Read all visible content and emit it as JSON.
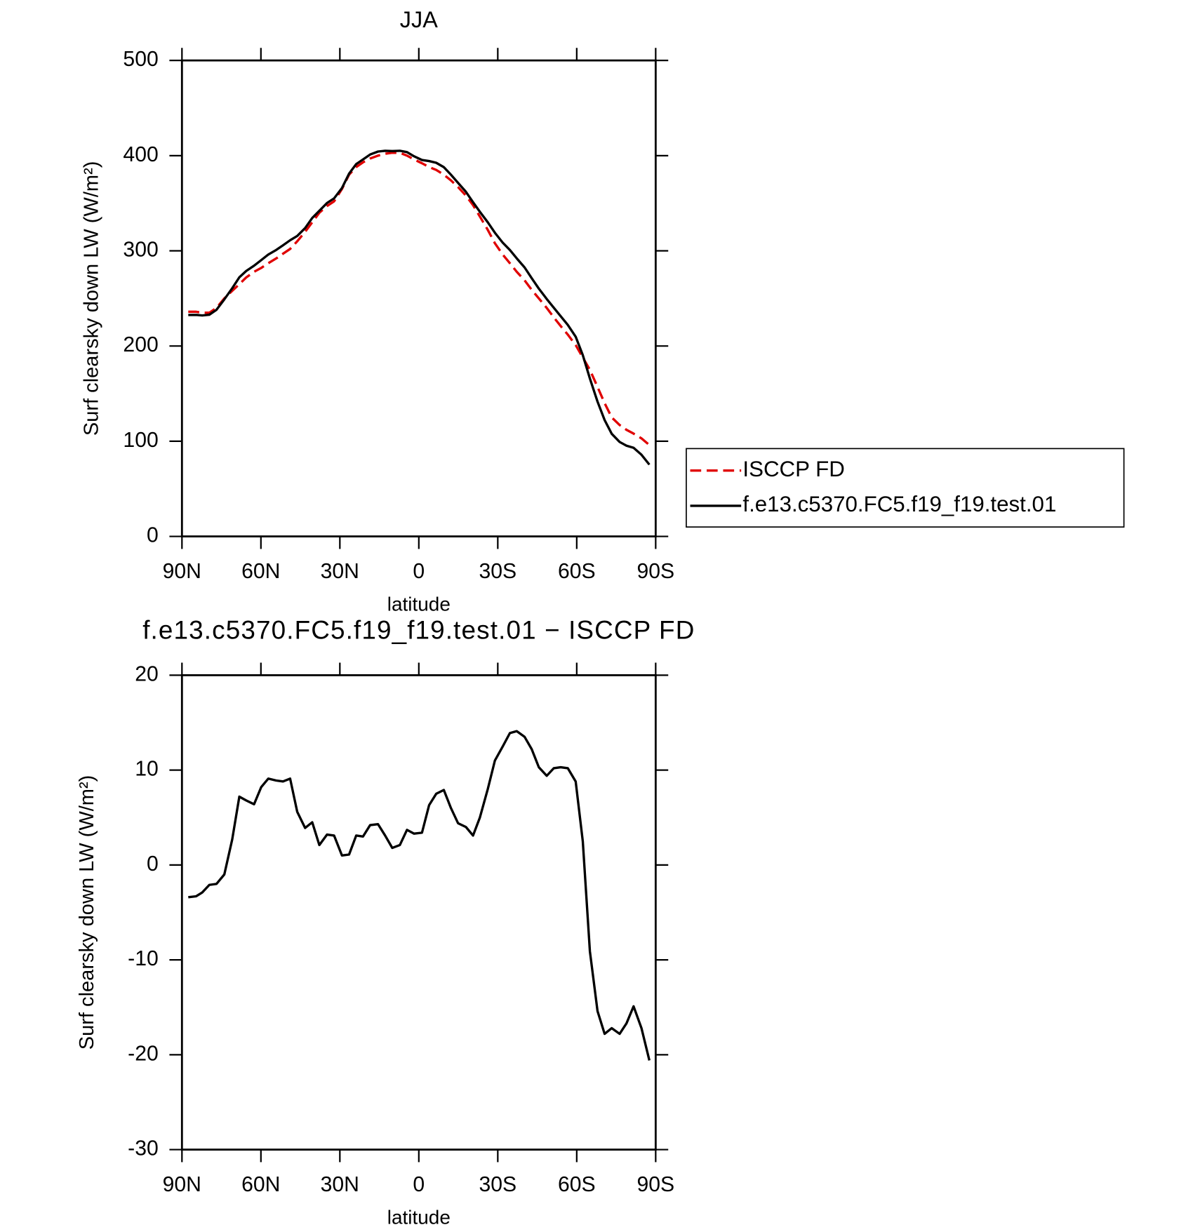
{
  "chart_data": [
    {
      "type": "line",
      "title": "JJA",
      "xlabel": "latitude",
      "ylabel": "Surf clearsky down LW (W/m²)",
      "x": [
        87.6,
        84.6,
        82.3,
        79.6,
        76.9,
        73.9,
        70.9,
        68.2,
        65.6,
        62.6,
        59.9,
        57.2,
        54.2,
        51.6,
        48.9,
        46.2,
        43.2,
        40.5,
        37.8,
        34.9,
        32.2,
        29.2,
        26.5,
        23.8,
        21.2,
        18.5,
        15.5,
        12.8,
        10.1,
        7.2,
        4.5,
        1.8,
        -1.2,
        -3.9,
        -6.6,
        -9.5,
        -12.2,
        -14.9,
        -17.9,
        -20.6,
        -23.2,
        -26.2,
        -28.9,
        -31.9,
        -34.6,
        -37.2,
        -40.2,
        -42.9,
        -45.6,
        -48.6,
        -51.3,
        -53.9,
        -56.6,
        -59.6,
        -62.3,
        -65.0,
        -67.9,
        -70.6,
        -73.3,
        -76.3,
        -78.9,
        -81.6,
        -84.6,
        -87.6
      ],
      "series": [
        {
          "name": "ISCCP FD",
          "color": "#e00000",
          "style": "dashed",
          "values": [
            236,
            236,
            235,
            235,
            240,
            250,
            258,
            265,
            272,
            278,
            282,
            287,
            292,
            297,
            302,
            310,
            320,
            330,
            340,
            347,
            352,
            365,
            380,
            388,
            393,
            397,
            400,
            402,
            403,
            403,
            400,
            396,
            392,
            388,
            385,
            380,
            374,
            367,
            358,
            348,
            336,
            322,
            308,
            296,
            287,
            278,
            269,
            259,
            250,
            240,
            230,
            221,
            212,
            201,
            188,
            175,
            157,
            140,
            125,
            117,
            112,
            108,
            103,
            96
          ]
        },
        {
          "name": "f.e13.c5370.FC5.f19_f19.test.01",
          "color": "#000000",
          "style": "solid",
          "values": [
            232.6,
            232.7,
            232.1,
            232.9,
            238,
            249,
            260.7,
            272.2,
            278.8,
            284.4,
            290.2,
            296.1,
            300.9,
            305.8,
            311.1,
            315.6,
            323.9,
            334.5,
            342.1,
            350.2,
            355.1,
            366,
            381.1,
            391.1,
            396,
            401.2,
            404.3,
            405.1,
            404.8,
            405.1,
            403.7,
            399.3,
            395.4,
            394.3,
            392.5,
            387.9,
            380,
            371.4,
            362,
            351.1,
            341,
            330,
            319,
            308.5,
            300.9,
            292.1,
            282.5,
            271.2,
            260.3,
            249.4,
            240.2,
            231.3,
            222.2,
            209.8,
            190.5,
            165.9,
            141.6,
            122.2,
            107.8,
            99.2,
            95.3,
            93.1,
            85.8,
            75.4
          ]
        }
      ],
      "xlim": [
        90,
        -90
      ],
      "xticks": [
        {
          "value": 90,
          "label": "90N"
        },
        {
          "value": 60,
          "label": "60N"
        },
        {
          "value": 30,
          "label": "30N"
        },
        0,
        {
          "value": -30,
          "label": "30S"
        },
        {
          "value": -60,
          "label": "60S"
        },
        {
          "value": -90,
          "label": "90S"
        }
      ],
      "ylim": [
        0,
        500
      ],
      "yticks": [
        0,
        100,
        200,
        300,
        400,
        500
      ],
      "legend": "right"
    },
    {
      "type": "line",
      "title": "f.e13.c5370.FC5.f19_f19.test.01 − ISCCP FD",
      "xlabel": "latitude",
      "ylabel": "Surf clearsky down LW (W/m²)",
      "x": [
        87.6,
        84.6,
        82.3,
        79.6,
        76.9,
        73.9,
        70.9,
        68.2,
        65.6,
        62.6,
        59.9,
        57.2,
        54.2,
        51.6,
        48.9,
        46.2,
        43.2,
        40.5,
        37.8,
        34.9,
        32.2,
        29.2,
        26.5,
        23.8,
        21.2,
        18.5,
        15.5,
        12.8,
        10.1,
        7.2,
        4.5,
        1.8,
        -1.2,
        -3.9,
        -6.6,
        -9.5,
        -12.2,
        -14.9,
        -17.9,
        -20.6,
        -23.2,
        -26.2,
        -28.9,
        -31.9,
        -34.6,
        -37.2,
        -40.2,
        -42.9,
        -45.6,
        -48.6,
        -51.3,
        -53.9,
        -56.6,
        -59.6,
        -62.3,
        -65.0,
        -67.9,
        -70.6,
        -73.3,
        -76.3,
        -78.9,
        -81.6,
        -84.6,
        -87.6
      ],
      "series": [
        {
          "color": "#000000",
          "style": "solid",
          "values": [
            -3.4,
            -3.3,
            -2.9,
            -2.1,
            -2.0,
            -1.0,
            2.7,
            7.2,
            6.8,
            6.4,
            8.2,
            9.1,
            8.9,
            8.8,
            9.1,
            5.6,
            3.9,
            4.5,
            2.1,
            3.2,
            3.1,
            1.0,
            1.1,
            3.1,
            3.0,
            4.2,
            4.3,
            3.1,
            1.8,
            2.1,
            3.7,
            3.3,
            3.4,
            6.3,
            7.5,
            7.9,
            6.0,
            4.4,
            4.0,
            3.1,
            5.0,
            8.0,
            11.0,
            12.5,
            13.9,
            14.1,
            13.5,
            12.2,
            10.3,
            9.4,
            10.2,
            10.3,
            10.2,
            8.8,
            2.5,
            -9.1,
            -15.4,
            -17.8,
            -17.2,
            -17.8,
            -16.7,
            -14.9,
            -17.2,
            -20.6
          ]
        }
      ],
      "xlim": [
        90,
        -90
      ],
      "xticks": [
        {
          "value": 90,
          "label": "90N"
        },
        {
          "value": 60,
          "label": "60N"
        },
        {
          "value": 30,
          "label": "30N"
        },
        0,
        {
          "value": -30,
          "label": "30S"
        },
        {
          "value": -60,
          "label": "60S"
        },
        {
          "value": -90,
          "label": "90S"
        }
      ],
      "ylim": [
        -30,
        20
      ],
      "yticks": [
        -30,
        -20,
        -10,
        0,
        10,
        20
      ]
    }
  ]
}
